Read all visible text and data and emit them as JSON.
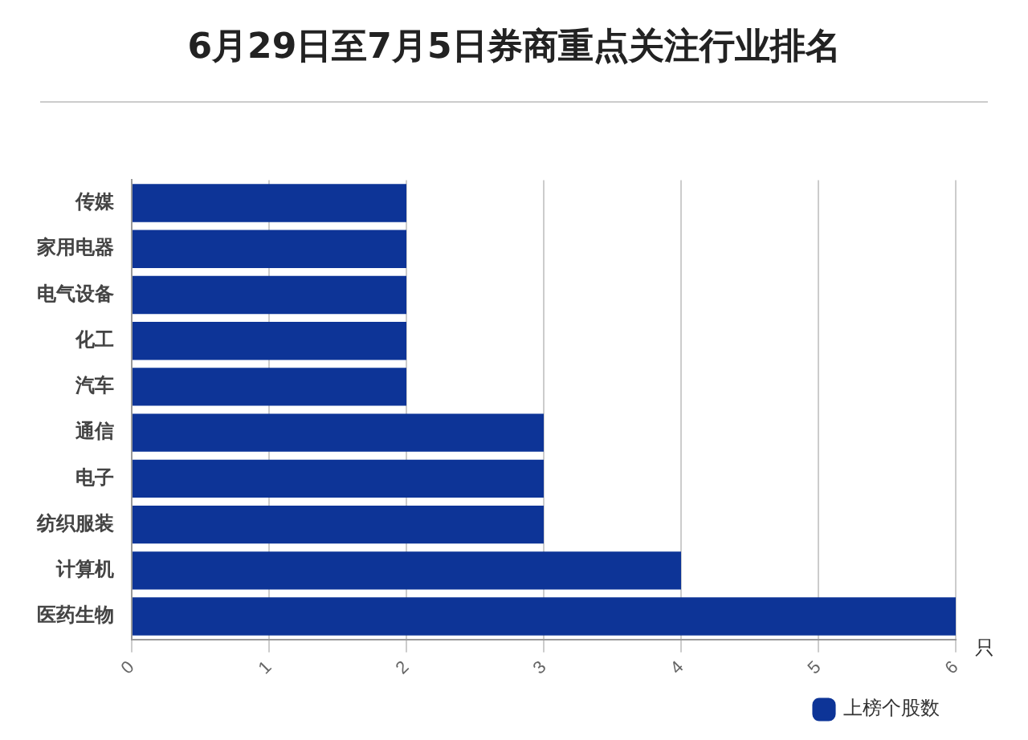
{
  "chart_data": {
    "type": "bar",
    "title": "6月29日至7月5日券商重点关注行业排名",
    "orientation": "horizontal",
    "categories": [
      "传媒",
      "家用电器",
      "电气设备",
      "化工",
      "汽车",
      "通信",
      "电子",
      "纺织服装",
      "计算机",
      "医药生物"
    ],
    "series": [
      {
        "name": "上榜个股数",
        "color": "#0d3497",
        "values": [
          2,
          2,
          2,
          2,
          2,
          3,
          3,
          3,
          4,
          6
        ]
      }
    ],
    "xlim": [
      0,
      6
    ],
    "xticks": [
      0,
      1,
      2,
      3,
      4,
      5,
      6
    ],
    "xlabel": "只",
    "grid": "x",
    "legend": "bottom right"
  }
}
